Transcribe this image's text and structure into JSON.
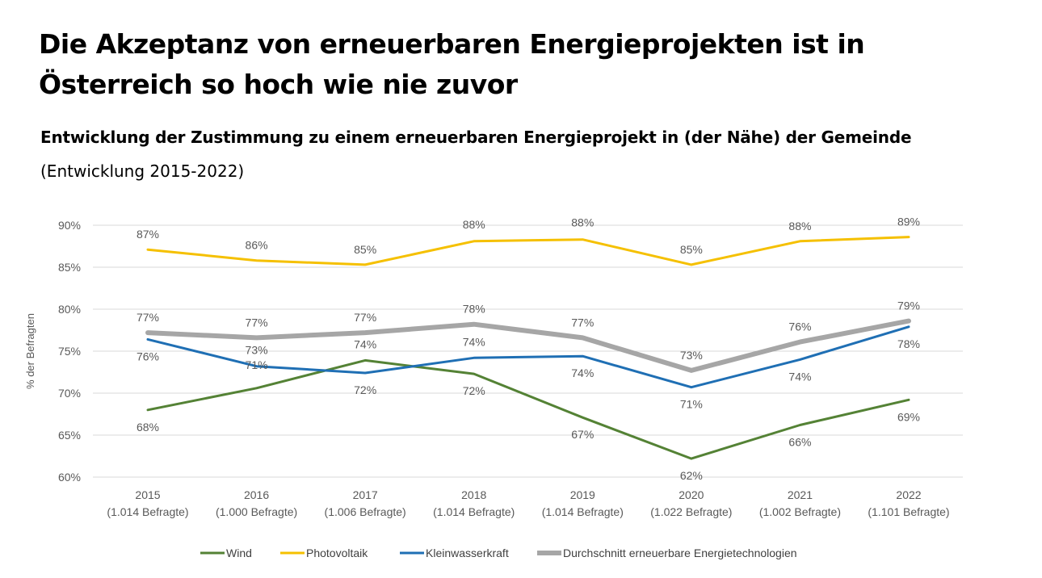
{
  "header": {
    "title": "Die Akzeptanz von erneuerbaren Energieprojekten ist in Österreich so hoch wie nie zuvor",
    "subtitle": "Entwicklung der Zustimmung zu einem erneuerbaren Energieprojekt in (der Nähe) der Gemeinde",
    "subtitle2": "(Entwicklung 2015-2022)"
  },
  "chart_data": {
    "type": "line",
    "ylabel": "% der Befragten",
    "ylim": [
      60,
      90
    ],
    "yticks": [
      "90%",
      "85%",
      "80%",
      "75%",
      "70%",
      "65%",
      "60%"
    ],
    "grid": true,
    "legend_position": "bottom",
    "categories": [
      {
        "year": "2015",
        "sub": "(1.014 Befragte)"
      },
      {
        "year": "2016",
        "sub": "(1.000 Befragte)"
      },
      {
        "year": "2017",
        "sub": "(1.006 Befragte)"
      },
      {
        "year": "2018",
        "sub": "(1.014 Befragte)"
      },
      {
        "year": "2019",
        "sub": "(1.014 Befragte)"
      },
      {
        "year": "2020",
        "sub": "(1.022 Befragte)"
      },
      {
        "year": "2021",
        "sub": "(1.002 Befragte)"
      },
      {
        "year": "2022",
        "sub": "(1.101 Befragte)"
      }
    ],
    "series": [
      {
        "name": "Wind",
        "color": "#548235",
        "width": 3,
        "values": [
          68.0,
          70.6,
          73.9,
          72.3,
          67.1,
          62.2,
          66.2,
          69.2
        ],
        "labels": [
          "68%",
          "71%",
          "74%",
          "72%",
          "67%",
          "62%",
          "66%",
          "69%"
        ]
      },
      {
        "name": "Photovoltaik",
        "color": "#f5c000",
        "width": 3,
        "values": [
          87.1,
          85.8,
          85.3,
          88.1,
          88.3,
          85.3,
          88.1,
          88.6
        ],
        "labels": [
          "87%",
          "86%",
          "85%",
          "88%",
          "88%",
          "85%",
          "88%",
          "89%"
        ]
      },
      {
        "name": "Kleinwasserkraft",
        "color": "#1f6fb4",
        "width": 3,
        "values": [
          76.4,
          73.2,
          72.4,
          74.2,
          74.4,
          70.7,
          74.0,
          77.9
        ],
        "labels": [
          "76%",
          "73%",
          "72%",
          "74%",
          "74%",
          "71%",
          "74%",
          "78%"
        ]
      },
      {
        "name": "Durchschnitt erneuerbare Energietechnologien",
        "color": "#a6a6a6",
        "width": 6,
        "values": [
          77.2,
          76.6,
          77.2,
          78.2,
          76.6,
          72.7,
          76.1,
          78.6
        ],
        "labels": [
          "77%",
          "77%",
          "77%",
          "78%",
          "77%",
          "73%",
          "76%",
          "79%"
        ]
      }
    ]
  }
}
